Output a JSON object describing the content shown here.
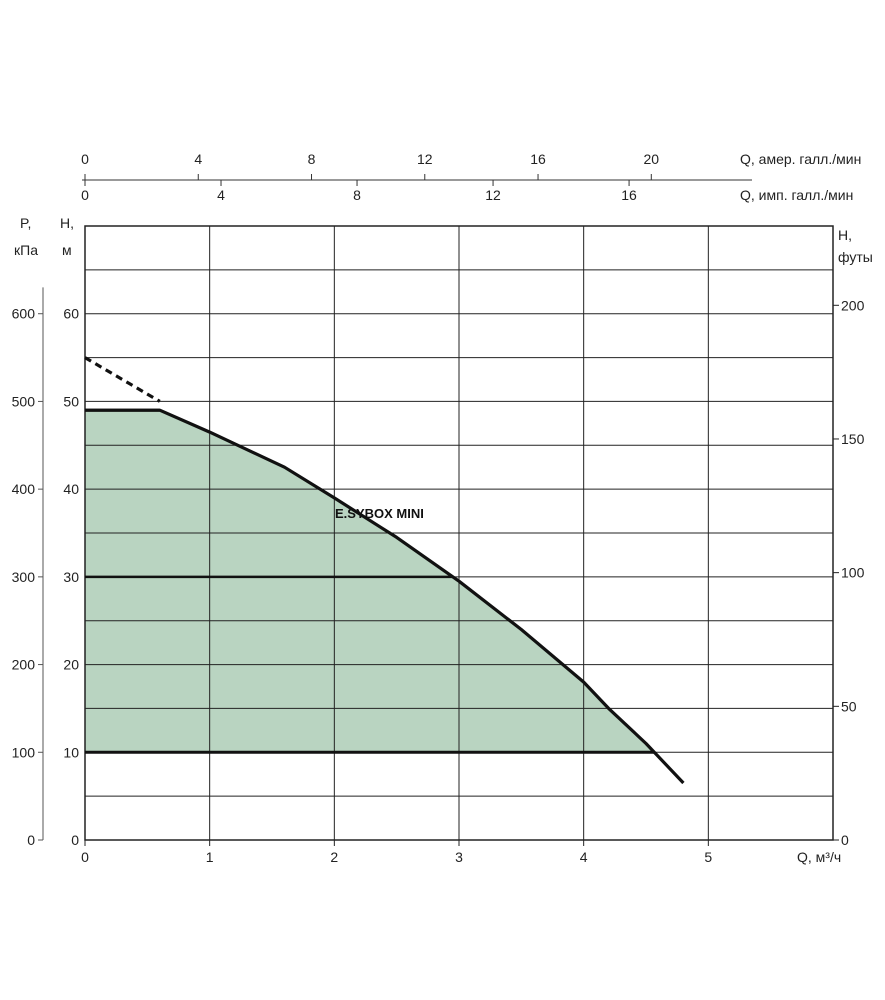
{
  "chart_data": {
    "type": "area",
    "title": "",
    "series": [
      {
        "name": "E.SYBOX MINI",
        "x": [
          0,
          0.6,
          1.0,
          1.6,
          2.0,
          2.5,
          3.0,
          3.5,
          4.0,
          4.2,
          4.5,
          4.8
        ],
        "y": [
          49,
          49,
          46.5,
          42.5,
          39,
          34.5,
          29.5,
          24,
          18,
          15,
          11,
          6.5
        ],
        "extrapolated": {
          "x": [
            0,
            0.6
          ],
          "y": [
            55,
            50
          ]
        }
      }
    ],
    "operating_region": {
      "fill": "#b9d4c1",
      "h_range": [
        10,
        49
      ],
      "setpoint_lines_h": [
        10,
        30,
        49
      ]
    },
    "axes": {
      "x_bottom": {
        "label": "Q, м³/ч",
        "ticks": [
          "0",
          "1",
          "2",
          "3",
          "4",
          "5"
        ],
        "range": [
          0,
          6
        ]
      },
      "y_left_h": {
        "label_line1": "H,",
        "label_line2": "м",
        "ticks": [
          "0",
          "10",
          "20",
          "30",
          "40",
          "50",
          "60"
        ],
        "range": [
          0,
          70
        ]
      },
      "y_left_p": {
        "label_line1": "P,",
        "label_line2": "кПа",
        "ticks": [
          "0",
          "100",
          "200",
          "300",
          "400",
          "500",
          "600"
        ],
        "range": [
          0,
          700
        ]
      },
      "y_right_ft": {
        "label_line1": "H,",
        "label_line2": "футы",
        "ticks": [
          "0",
          "50",
          "100",
          "150",
          "200"
        ]
      },
      "x_top_us": {
        "label": "Q, амер. галл./мин",
        "ticks": [
          "0",
          "4",
          "8",
          "12",
          "16",
          "20"
        ]
      },
      "x_top_imp": {
        "label": "Q, имп. галл./мин",
        "ticks": [
          "0",
          "4",
          "8",
          "12",
          "16"
        ]
      }
    },
    "grid": true,
    "legend": "none",
    "colors": {
      "curve": "#111111",
      "grid": "#222222",
      "fill": "#b9d4c1"
    }
  }
}
